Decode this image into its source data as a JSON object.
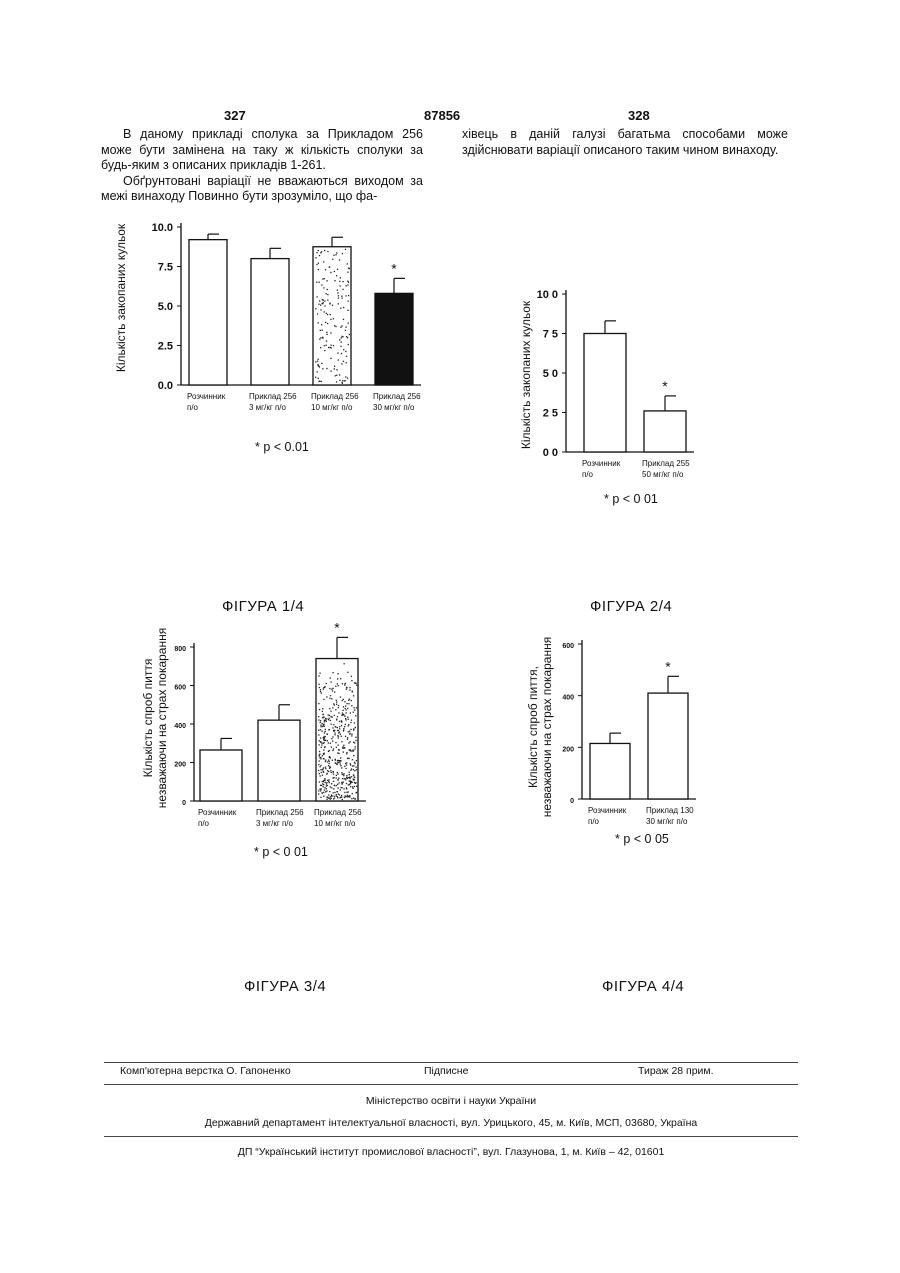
{
  "header": {
    "page_left": "327",
    "patent_number": "87856",
    "page_right": "328"
  },
  "text": {
    "left_p1": "В даному прикладі сполука за Прикладом 256 може бути замінена на таку ж кількість сполуки за будь-яким з описаних прикладів 1-261.",
    "left_p2": "Обґрунтовані варіації не вважаються виходом за межі винаходу Повинно бути зрозуміло, що фа-",
    "right_p1": "хівець в даній галузі багатьма способами може здійснювати варіації описаного таким чином винаходу."
  },
  "figures": [
    {
      "caption": "ФІГУРА 1/4",
      "significance": "* p < 0.01"
    },
    {
      "caption": "ФІГУРА 2/4",
      "significance": "* p < 0 01"
    },
    {
      "caption": "ФІГУРА 3/4",
      "significance": "* p < 0 01"
    },
    {
      "caption": "ФІГУРА 4/4",
      "significance": "* p < 0 05"
    }
  ],
  "chart_data": [
    {
      "type": "bar",
      "ylabel": "Кількість закопаних кульок",
      "ylim": [
        0,
        10
      ],
      "yticks": [
        "0.0",
        "2.5",
        "5.0",
        "7.5",
        "10.0"
      ],
      "categories": [
        [
          "Розчинник",
          "п/о"
        ],
        [
          "Приклад 256",
          "3 мг/кг п/о"
        ],
        [
          "Приклад 256",
          "10 мг/кг п/о"
        ],
        [
          "Приклад 256",
          "30 мг/кг п/о"
        ]
      ],
      "values": [
        9.2,
        8.0,
        8.75,
        5.8
      ],
      "errors": [
        0.35,
        0.65,
        0.6,
        0.95
      ],
      "fills": [
        "#ffffff",
        "#ffffff",
        "speckle",
        "#111111"
      ],
      "significant": [
        false,
        false,
        false,
        true
      ],
      "star": "*"
    },
    {
      "type": "bar",
      "ylabel": "Кількість закопаних кульок",
      "ylim": [
        0,
        10
      ],
      "yticks": [
        "0 0",
        "2 5",
        "5 0",
        "7 5",
        "10 0"
      ],
      "categories": [
        [
          "Розчинник",
          "п/о"
        ],
        [
          "Приклад 255",
          "50 мг/кг п/о"
        ]
      ],
      "values": [
        7.5,
        2.6
      ],
      "errors": [
        0.8,
        0.95
      ],
      "fills": [
        "#ffffff",
        "#ffffff"
      ],
      "significant": [
        false,
        true
      ],
      "star": "*"
    },
    {
      "type": "bar",
      "ylabel": "Кількість спроб пиття незважаючи на страх покарання",
      "ylim": [
        0,
        800
      ],
      "yticks": [
        "0",
        "200",
        "400",
        "600",
        "800"
      ],
      "categories": [
        [
          "Розчинник",
          "п/о"
        ],
        [
          "Приклад 256",
          "3 мг/кг п/о"
        ],
        [
          "Приклад 256",
          "10 мг/кг п/о"
        ]
      ],
      "values": [
        265,
        420,
        740
      ],
      "errors": [
        60,
        80,
        110
      ],
      "fills": [
        "#ffffff",
        "#ffffff",
        "speckle"
      ],
      "significant": [
        false,
        false,
        true
      ],
      "star": "*"
    },
    {
      "type": "bar",
      "ylabel": "Кількість спроб пиття, незважаючи на страх покарання",
      "ylim": [
        0,
        600
      ],
      "yticks": [
        "0",
        "200",
        "400",
        "600"
      ],
      "categories": [
        [
          "Розчинник",
          "п/о"
        ],
        [
          "Приклад 130",
          "30 мг/кг п/о"
        ]
      ],
      "values": [
        215,
        410
      ],
      "errors": [
        40,
        65
      ],
      "fills": [
        "#ffffff",
        "#ffffff"
      ],
      "significant": [
        false,
        true
      ],
      "star": "*"
    }
  ],
  "footer": {
    "layout": "Комп'ютерна верстка О. Гапоненко",
    "signed": "Підписне",
    "circulation": "Тираж 28 прим.",
    "ministry": "Міністерство освіти і науки України",
    "department": "Державний департамент інтелектуальної власності, вул. Урицького, 45, м. Київ, МСП, 03680, Україна",
    "institute": "ДП “Український інститут промислової власності”, вул. Глазунова, 1, м. Київ – 42, 01601"
  }
}
